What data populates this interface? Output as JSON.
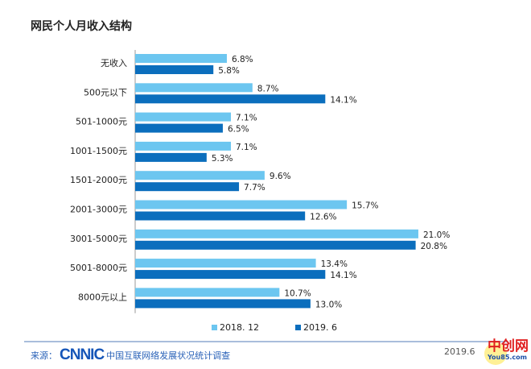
{
  "title": "网民个人月收入结构",
  "chart_data": {
    "type": "bar",
    "orientation": "horizontal",
    "categories": [
      "无收入",
      "500元以下",
      "501-1000元",
      "1001-1500元",
      "1501-2000元",
      "2001-3000元",
      "3001-5000元",
      "5001-8000元",
      "8000元以上"
    ],
    "series": [
      {
        "name": "2018. 12",
        "color": "#6cc6f0",
        "values": [
          6.8,
          8.7,
          7.1,
          7.1,
          9.6,
          15.7,
          21.0,
          13.4,
          10.7
        ]
      },
      {
        "name": "2019. 6",
        "color": "#0b6ebd",
        "values": [
          5.8,
          14.1,
          6.5,
          5.3,
          7.7,
          12.6,
          20.8,
          14.1,
          13.0
        ]
      }
    ],
    "value_format": "%",
    "legend": "bottom",
    "grid": false
  },
  "footer": {
    "source_label": "来源：",
    "logo": "CNNIC",
    "source_text": "中国互联网络发展状况统计调查",
    "date": "2019.6"
  },
  "watermark": {
    "cn": "中创网",
    "en": "You85.com"
  }
}
